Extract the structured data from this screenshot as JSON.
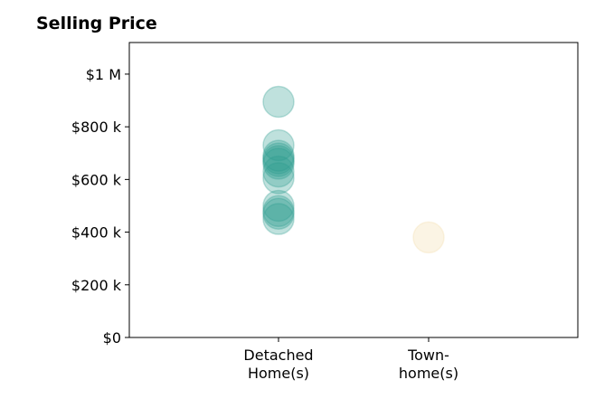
{
  "chart_data": {
    "type": "scatter",
    "title": "Selling Price",
    "xlabel": "",
    "ylabel": "",
    "ylim": [
      0,
      1120000
    ],
    "grid": false,
    "categories": [
      {
        "name": "Detached Home(s)",
        "lines": [
          "Detached",
          "Home(s)"
        ],
        "color": "#2a9d8f"
      },
      {
        "name": "Town-home(s)",
        "lines": [
          "Town-",
          "home(s)"
        ],
        "color": "#f2d9a4"
      }
    ],
    "yticks": [
      {
        "value": 0,
        "label": "$0"
      },
      {
        "value": 200000,
        "label": "$200 k"
      },
      {
        "value": 400000,
        "label": "$400 k"
      },
      {
        "value": 600000,
        "label": "$600 k"
      },
      {
        "value": 800000,
        "label": "$800 k"
      },
      {
        "value": 1000000,
        "label": "$1 M"
      }
    ],
    "points": [
      {
        "category": 0,
        "y": 895000
      },
      {
        "category": 0,
        "y": 730000
      },
      {
        "category": 0,
        "y": 690000
      },
      {
        "category": 0,
        "y": 680000
      },
      {
        "category": 0,
        "y": 670000
      },
      {
        "category": 0,
        "y": 660000
      },
      {
        "category": 0,
        "y": 630000
      },
      {
        "category": 0,
        "y": 605000
      },
      {
        "category": 0,
        "y": 500000
      },
      {
        "category": 0,
        "y": 480000
      },
      {
        "category": 0,
        "y": 470000
      },
      {
        "category": 0,
        "y": 450000
      },
      {
        "category": 1,
        "y": 380000
      }
    ]
  }
}
